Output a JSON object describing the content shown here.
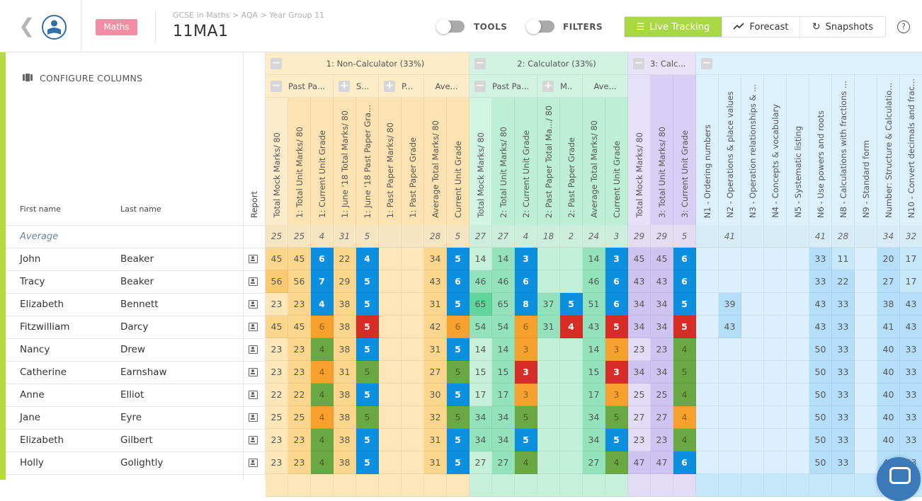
{
  "header": {
    "subject_badge": "Maths",
    "breadcrumb": "GCSE in Maths > AQA > Year Group 11",
    "title": "11MA1",
    "toggles": [
      {
        "label": "TOOLS",
        "on": false
      },
      {
        "label": "FILTERS",
        "on": false
      }
    ],
    "views": [
      {
        "label": "Live Tracking",
        "icon": "list-icon",
        "active": true
      },
      {
        "label": "Forecast",
        "icon": "trend-icon",
        "active": false
      },
      {
        "label": "Snapshots",
        "icon": "refresh-icon",
        "active": false
      }
    ],
    "help": "?"
  },
  "colors": {
    "accent": "#a8d843",
    "badge": "#f28da4",
    "blue": "#0b8fde",
    "orange": "#f6a12d",
    "red": "#d62e26",
    "green": "#6aa843"
  },
  "left": {
    "configure": "CONFIGURE COLUMNS",
    "first_name_header": "First name",
    "last_name_header": "Last name",
    "report_header": "Report",
    "average_label": "Average"
  },
  "groups": [
    {
      "label": "1: Non-Calculator (33%)",
      "span": 9,
      "hue": "y",
      "sub": [
        {
          "label": "Past Pa...",
          "span": 3,
          "btn": "−"
        },
        {
          "label": "S...",
          "span": 2,
          "btn": "+"
        },
        {
          "label": "P...",
          "span": 2,
          "btn": "+"
        },
        {
          "label": "Ave...",
          "span": 2,
          "btn": ""
        }
      ]
    },
    {
      "label": "2: Calculator (33%)",
      "span": 7,
      "hue": "g",
      "sub": [
        {
          "label": "Past Pa...",
          "span": 3,
          "btn": "−"
        },
        {
          "label": "M..",
          "span": 2,
          "btn": "+"
        },
        {
          "label": "Ave...",
          "span": 2,
          "btn": ""
        }
      ]
    },
    {
      "label": "3: Calc...",
      "span": 3,
      "hue": "p",
      "sub": []
    },
    {
      "label": "",
      "span": 10,
      "hue": "b",
      "sub": []
    }
  ],
  "columns": [
    "Total Mock Marks/ 80",
    "1: Total Unit Marks/ 80",
    "1: Current Unit Grade",
    "1: June '18 Total Marks/ 80",
    "1: June '18 Past Paper Gra...",
    "1: Past Paper Marks/ 80",
    "1: Past Paper Grade",
    "Average Total Marks/ 80",
    "Current Unit Grade",
    "Total Mock Marks/ 80",
    "2: Total Unit Marks/ 80",
    "2: Current Unit Grade",
    "2: Past Paper Total Ma.../ 80",
    "2: Past Paper Grade",
    "Average Total Marks/ 80",
    "Current Unit Grade",
    "Total Mock Marks/ 80",
    "3: Total Unit Marks/ 80",
    "3: Current Unit Grade",
    "N1 - Ordering numbers",
    "N2 - Operations & place values",
    "N3 - Operation relationships & ...",
    "N4 - Concepts & vocabulary",
    "N5 - Systematic listing",
    "N6 - Use powers and roots",
    "N8 - Calculations with fractions ...",
    "N9 - Standard form",
    "Number: Structure & Calculatio...",
    "N10 - Convert decimals and frac..."
  ],
  "average": [
    "25",
    "25",
    "4",
    "31",
    "5",
    "",
    "",
    "28",
    "5",
    "27",
    "27",
    "4",
    "18",
    "2",
    "24",
    "3",
    "29",
    "29",
    "5",
    "",
    "41",
    "",
    "",
    "",
    "41",
    "28",
    "",
    "34",
    "32"
  ],
  "rows": [
    {
      "first": "John",
      "last": "Beaker",
      "tones": "mmBmB..mBlmB..mBmmB.....ml.ml",
      "values": [
        "45",
        "45",
        "6",
        "22",
        "4",
        "",
        "",
        "34",
        "5",
        "14",
        "14",
        "3",
        "",
        "",
        "14",
        "3",
        "45",
        "45",
        "6",
        "",
        "",
        "",
        "",
        "",
        "33",
        "11",
        "",
        "20",
        "17"
      ]
    },
    {
      "first": "Tracy",
      "last": "Beaker",
      "tones": "dmBmB..mBmmB..mBmmB.....mm.ml",
      "values": [
        "56",
        "56",
        "7",
        "29",
        "5",
        "",
        "",
        "43",
        "6",
        "46",
        "46",
        "6",
        "",
        "",
        "46",
        "6",
        "43",
        "43",
        "6",
        "",
        "",
        "",
        "",
        "",
        "33",
        "22",
        "",
        "27",
        "17"
      ]
    },
    {
      "first": "Elizabeth",
      "last": "Bennett",
      "tones": "lmBmB..mBdmBmBmBmmB.m...mm.mm",
      "values": [
        "23",
        "23",
        "4",
        "38",
        "5",
        "",
        "",
        "31",
        "5",
        "65",
        "65",
        "8",
        "37",
        "5",
        "51",
        "6",
        "34",
        "34",
        "5",
        "",
        "39",
        "",
        "",
        "",
        "43",
        "33",
        "",
        "38",
        "43"
      ]
    },
    {
      "first": "Fitzwilliam",
      "last": "Darcy",
      "tones": "mmOmR..mOmmOmRmRmmR.m...mm.mm",
      "values": [
        "45",
        "45",
        "6",
        "38",
        "5",
        "",
        "",
        "42",
        "6",
        "54",
        "54",
        "6",
        "31",
        "4",
        "43",
        "5",
        "34",
        "34",
        "5",
        "",
        "43",
        "",
        "",
        "",
        "43",
        "33",
        "",
        "41",
        "43"
      ]
    },
    {
      "first": "Nancy",
      "last": "Drew",
      "tones": "lmGmB..mBlmO..mOlmG.....mm.mm",
      "values": [
        "23",
        "23",
        "4",
        "38",
        "5",
        "",
        "",
        "31",
        "5",
        "14",
        "14",
        "3",
        "",
        "",
        "14",
        "3",
        "23",
        "23",
        "4",
        "",
        "",
        "",
        "",
        "",
        "50",
        "33",
        "",
        "40",
        "33"
      ]
    },
    {
      "first": "Catherine",
      "last": "Earnshaw",
      "tones": "lmOmG..mGlmR..mRmmG.....mm.mm",
      "values": [
        "23",
        "23",
        "4",
        "31",
        "5",
        "",
        "",
        "27",
        "5",
        "15",
        "15",
        "3",
        "",
        "",
        "15",
        "3",
        "34",
        "34",
        "5",
        "",
        "",
        "",
        "",
        "",
        "50",
        "33",
        "",
        "40",
        "33"
      ]
    },
    {
      "first": "Anne",
      "last": "Elliot",
      "tones": "lmGmB..mBlmO..mOlmG.....mm.mm",
      "values": [
        "22",
        "22",
        "4",
        "38",
        "5",
        "",
        "",
        "30",
        "5",
        "17",
        "17",
        "3",
        "",
        "",
        "17",
        "3",
        "25",
        "25",
        "4",
        "",
        "",
        "",
        "",
        "",
        "50",
        "33",
        "",
        "40",
        "33"
      ]
    },
    {
      "first": "Jane",
      "last": "Eyre",
      "tones": "lmOmG..mGmmG..mGlmO.....mm.mm",
      "values": [
        "25",
        "25",
        "4",
        "38",
        "5",
        "",
        "",
        "32",
        "5",
        "34",
        "34",
        "5",
        "",
        "",
        "34",
        "5",
        "27",
        "27",
        "4",
        "",
        "",
        "",
        "",
        "",
        "50",
        "33",
        "",
        "40",
        "33"
      ]
    },
    {
      "first": "Elizabeth",
      "last": "Gilbert",
      "tones": "lmGmB..mBmmB..mBlmG.....mm.mm",
      "values": [
        "23",
        "23",
        "4",
        "38",
        "5",
        "",
        "",
        "31",
        "5",
        "34",
        "34",
        "5",
        "",
        "",
        "34",
        "5",
        "23",
        "23",
        "4",
        "",
        "",
        "",
        "",
        "",
        "50",
        "33",
        "",
        "40",
        "33"
      ]
    },
    {
      "first": "Holly",
      "last": "Golightly",
      "tones": "lmGmB..mBlmG..mGmmB.....mm.mm",
      "values": [
        "23",
        "23",
        "4",
        "38",
        "5",
        "",
        "",
        "31",
        "5",
        "27",
        "27",
        "4",
        "",
        "",
        "27",
        "4",
        "47",
        "47",
        "6",
        "",
        "",
        "",
        "",
        "",
        "50",
        "33",
        "",
        "40",
        "33"
      ]
    }
  ]
}
